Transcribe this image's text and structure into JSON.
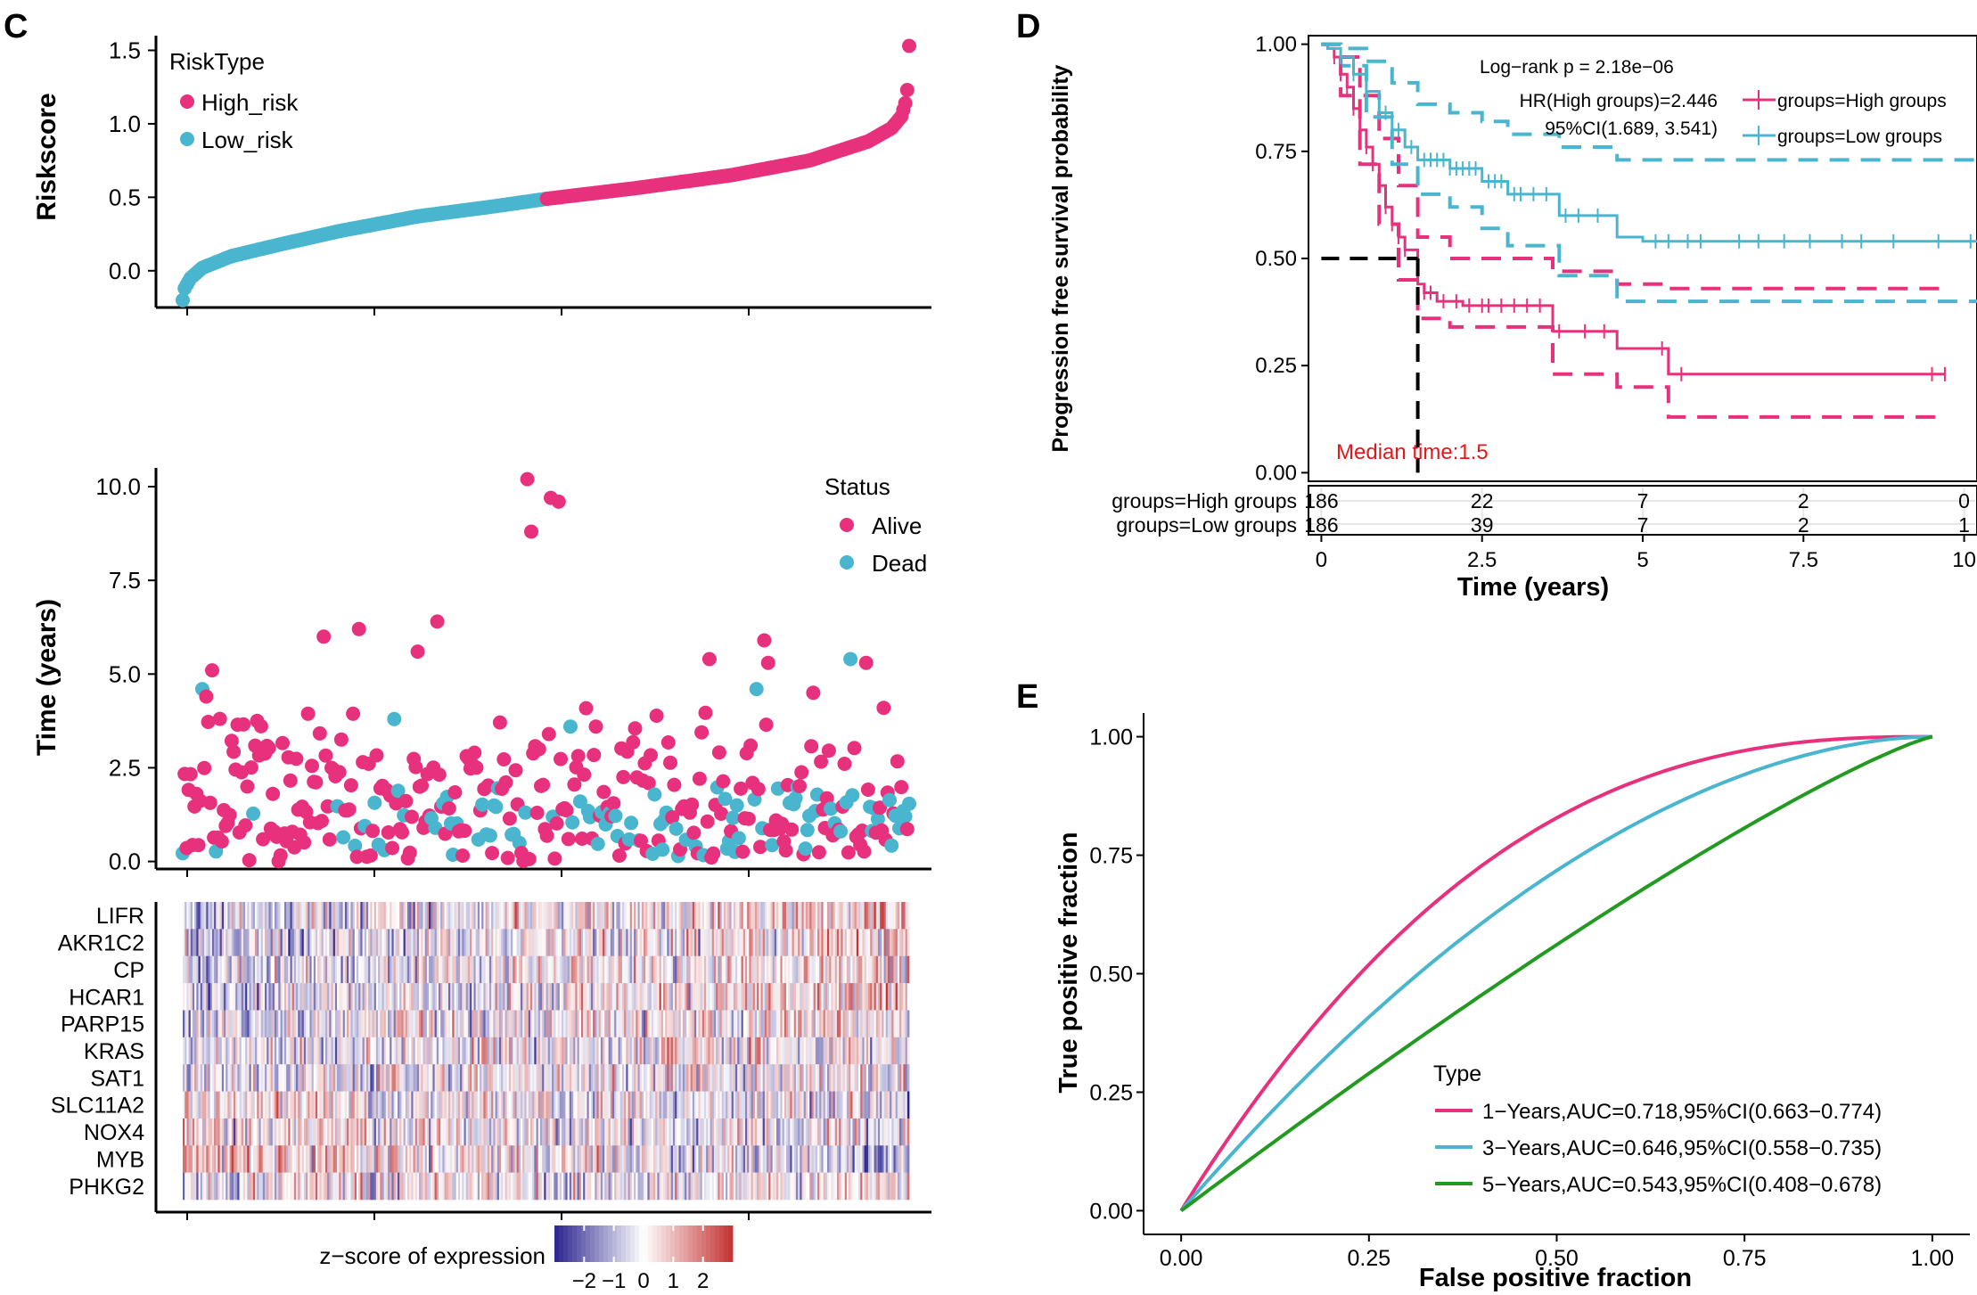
{
  "colors": {
    "high": "#E8317D",
    "low": "#4AB5CE",
    "green": "#229A22",
    "median_text": "#E0181B",
    "heat_low": "#2A238E",
    "heat_mid": "#FFFFFF",
    "heat_high": "#C43232"
  },
  "panels": {
    "c": "C",
    "d": "D",
    "e": "E"
  },
  "chart_data": [
    {
      "id": "C-riskscore",
      "type": "scatter",
      "ylabel": "Riskscore",
      "ylim": [
        -0.25,
        1.6
      ],
      "yticks": [
        0.0,
        0.5,
        1.0,
        1.5
      ],
      "ytick_labels": [
        "0.0",
        "0.5",
        "1.0",
        "1.5"
      ],
      "n_samples": 372,
      "n_low": 186,
      "legend": {
        "title": "RiskType",
        "entries": [
          "High_risk",
          "Low_risk"
        ],
        "position": "top-left"
      },
      "curve_control_points": [
        [
          0,
          -0.2
        ],
        [
          1,
          -0.12
        ],
        [
          4,
          -0.05
        ],
        [
          10,
          0.02
        ],
        [
          25,
          0.1
        ],
        [
          50,
          0.18
        ],
        [
          80,
          0.27
        ],
        [
          120,
          0.37
        ],
        [
          160,
          0.44
        ],
        [
          186,
          0.49
        ],
        [
          230,
          0.56
        ],
        [
          280,
          0.65
        ],
        [
          320,
          0.75
        ],
        [
          350,
          0.88
        ],
        [
          362,
          0.97
        ],
        [
          367,
          1.05
        ],
        [
          369,
          1.14
        ],
        [
          370,
          1.23
        ],
        [
          371,
          1.53
        ]
      ]
    },
    {
      "id": "C-status",
      "type": "scatter",
      "ylabel": "Time (years)",
      "ylim": [
        -0.2,
        10.5
      ],
      "yticks": [
        0.0,
        2.5,
        5.0,
        7.5,
        10.0
      ],
      "ytick_labels": [
        "0.0",
        "2.5",
        "5.0",
        "7.5",
        "10.0"
      ],
      "legend": {
        "title": "Status",
        "entries": [
          "Alive",
          "Dead"
        ],
        "position": "top-right"
      },
      "highlighted_points": [
        {
          "x": 10,
          "y": 4.6,
          "status": "Dead"
        },
        {
          "x": 12,
          "y": 4.4,
          "status": "Alive"
        },
        {
          "x": 15,
          "y": 5.1,
          "status": "Alive"
        },
        {
          "x": 72,
          "y": 6.0,
          "status": "Alive"
        },
        {
          "x": 90,
          "y": 6.2,
          "status": "Alive"
        },
        {
          "x": 108,
          "y": 3.8,
          "status": "Dead"
        },
        {
          "x": 120,
          "y": 5.6,
          "status": "Alive"
        },
        {
          "x": 130,
          "y": 6.4,
          "status": "Alive"
        },
        {
          "x": 176,
          "y": 10.2,
          "status": "Alive"
        },
        {
          "x": 178,
          "y": 8.8,
          "status": "Alive"
        },
        {
          "x": 188,
          "y": 9.7,
          "status": "Alive"
        },
        {
          "x": 192,
          "y": 9.6,
          "status": "Alive"
        },
        {
          "x": 198,
          "y": 3.6,
          "status": "Dead"
        },
        {
          "x": 211,
          "y": 3.6,
          "status": "Alive"
        },
        {
          "x": 269,
          "y": 5.4,
          "status": "Alive"
        },
        {
          "x": 293,
          "y": 4.6,
          "status": "Dead"
        },
        {
          "x": 297,
          "y": 5.9,
          "status": "Alive"
        },
        {
          "x": 299,
          "y": 5.3,
          "status": "Alive"
        },
        {
          "x": 322,
          "y": 4.5,
          "status": "Alive"
        },
        {
          "x": 341,
          "y": 5.4,
          "status": "Dead"
        },
        {
          "x": 349,
          "y": 5.3,
          "status": "Alive"
        }
      ]
    },
    {
      "id": "C-heatmap",
      "type": "heatmap",
      "genes": [
        "LIFR",
        "AKR1C2",
        "CP",
        "HCAR1",
        "PARP15",
        "KRAS",
        "SAT1",
        "SLC11A2",
        "NOX4",
        "MYB",
        "PHKG2"
      ],
      "n_columns": 372,
      "color_scale": {
        "title": "z−score of expression",
        "ticks": [
          -2,
          -1,
          0,
          1,
          2
        ],
        "tick_labels": [
          "−2",
          "−1",
          "0",
          "1",
          "2"
        ],
        "range": [
          -3,
          3
        ]
      }
    },
    {
      "id": "D-km",
      "type": "line",
      "xlabel": "Time (years)",
      "ylabel": "Progression free survival probability",
      "xlim": [
        -0.2,
        10.2
      ],
      "ylim": [
        -0.02,
        1.02
      ],
      "xticks": [
        0,
        2.5,
        5,
        7.5,
        10
      ],
      "xtick_labels": [
        "0",
        "2.5",
        "5",
        "7.5",
        "10"
      ],
      "yticks": [
        0,
        0.25,
        0.5,
        0.75,
        1.0
      ],
      "ytick_labels": [
        "0.00",
        "0.25",
        "0.50",
        "0.75",
        "1.00"
      ],
      "annotations": {
        "logrank": "Log−rank p = 2.18e−06",
        "hr": "HR(High groups)=2.446",
        "ci": "95%CI(1.689, 3.541)",
        "median": "Median time:1.5"
      },
      "median_time": 1.5,
      "series": [
        {
          "name": "groups=High groups",
          "steps": [
            [
              0,
              1.0
            ],
            [
              0.1,
              0.99
            ],
            [
              0.2,
              0.97
            ],
            [
              0.3,
              0.93
            ],
            [
              0.4,
              0.9
            ],
            [
              0.5,
              0.85
            ],
            [
              0.6,
              0.8
            ],
            [
              0.7,
              0.76
            ],
            [
              0.8,
              0.72
            ],
            [
              0.9,
              0.67
            ],
            [
              1.0,
              0.62
            ],
            [
              1.1,
              0.58
            ],
            [
              1.2,
              0.55
            ],
            [
              1.3,
              0.52
            ],
            [
              1.5,
              0.44
            ],
            [
              1.6,
              0.42
            ],
            [
              1.8,
              0.4
            ],
            [
              2.2,
              0.39
            ],
            [
              3.6,
              0.33
            ],
            [
              4.6,
              0.29
            ],
            [
              5.4,
              0.23
            ],
            [
              9.7,
              0.23
            ]
          ],
          "ci_upper": [
            [
              0,
              1.0
            ],
            [
              0.3,
              0.97
            ],
            [
              0.6,
              0.88
            ],
            [
              0.9,
              0.78
            ],
            [
              1.2,
              0.67
            ],
            [
              1.5,
              0.55
            ],
            [
              2.0,
              0.5
            ],
            [
              3.6,
              0.47
            ],
            [
              4.6,
              0.44
            ],
            [
              5.4,
              0.43
            ],
            [
              9.7,
              0.43
            ]
          ],
          "ci_lower": [
            [
              0,
              1.0
            ],
            [
              0.3,
              0.88
            ],
            [
              0.6,
              0.72
            ],
            [
              0.9,
              0.58
            ],
            [
              1.2,
              0.45
            ],
            [
              1.5,
              0.36
            ],
            [
              2.0,
              0.34
            ],
            [
              3.6,
              0.23
            ],
            [
              4.6,
              0.2
            ],
            [
              5.4,
              0.13
            ],
            [
              9.7,
              0.13
            ]
          ],
          "censor_times": [
            0.2,
            0.3,
            0.4,
            0.5,
            0.6,
            0.7,
            0.8,
            0.9,
            1.0,
            1.1,
            1.2,
            1.3,
            1.6,
            1.7,
            1.9,
            2.1,
            2.3,
            2.5,
            2.6,
            2.8,
            3.0,
            3.2,
            3.4,
            3.7,
            4.1,
            4.4,
            5.3,
            5.6,
            9.5,
            9.7
          ]
        },
        {
          "name": "groups=Low groups",
          "steps": [
            [
              0,
              1.0
            ],
            [
              0.1,
              0.99
            ],
            [
              0.3,
              0.97
            ],
            [
              0.5,
              0.93
            ],
            [
              0.7,
              0.89
            ],
            [
              0.9,
              0.84
            ],
            [
              1.1,
              0.8
            ],
            [
              1.3,
              0.76
            ],
            [
              1.5,
              0.73
            ],
            [
              2.0,
              0.71
            ],
            [
              2.5,
              0.68
            ],
            [
              2.9,
              0.65
            ],
            [
              3.7,
              0.6
            ],
            [
              4.6,
              0.55
            ],
            [
              5.0,
              0.54
            ],
            [
              10.2,
              0.54
            ]
          ],
          "ci_upper": [
            [
              0,
              1.0
            ],
            [
              0.3,
              0.99
            ],
            [
              0.7,
              0.96
            ],
            [
              1.1,
              0.91
            ],
            [
              1.5,
              0.86
            ],
            [
              2.0,
              0.84
            ],
            [
              2.5,
              0.82
            ],
            [
              2.9,
              0.79
            ],
            [
              3.7,
              0.76
            ],
            [
              4.6,
              0.73
            ],
            [
              10.2,
              0.73
            ]
          ],
          "ci_lower": [
            [
              0,
              1.0
            ],
            [
              0.3,
              0.95
            ],
            [
              0.7,
              0.83
            ],
            [
              1.1,
              0.72
            ],
            [
              1.5,
              0.65
            ],
            [
              2.0,
              0.62
            ],
            [
              2.5,
              0.57
            ],
            [
              2.9,
              0.53
            ],
            [
              3.7,
              0.46
            ],
            [
              4.6,
              0.4
            ],
            [
              10.2,
              0.4
            ]
          ],
          "censor_times": [
            0.3,
            0.5,
            0.7,
            0.9,
            1.0,
            1.2,
            1.4,
            1.6,
            1.7,
            1.8,
            1.9,
            2.0,
            2.1,
            2.2,
            2.3,
            2.4,
            2.6,
            2.7,
            2.8,
            3.0,
            3.1,
            3.3,
            3.5,
            3.8,
            4.0,
            4.3,
            5.2,
            5.4,
            5.7,
            5.9,
            6.5,
            6.8,
            7.2,
            7.6,
            8.1,
            8.4,
            8.9,
            9.6,
            10.1
          ]
        }
      ],
      "risk_table": {
        "rows": [
          "groups=High groups",
          "groups=Low groups"
        ],
        "times": [
          0,
          2.5,
          5,
          7.5,
          10
        ],
        "counts": [
          [
            "186",
            "22",
            "7",
            "2",
            "0"
          ],
          [
            "186",
            "39",
            "7",
            "2",
            "1"
          ]
        ]
      }
    },
    {
      "id": "E-roc",
      "type": "line",
      "xlabel": "False positive fraction",
      "ylabel": "True positive fraction",
      "xlim": [
        -0.05,
        1.05
      ],
      "ylim": [
        -0.05,
        1.05
      ],
      "xticks": [
        0,
        0.25,
        0.5,
        0.75,
        1.0
      ],
      "xtick_labels": [
        "0.00",
        "0.25",
        "0.50",
        "0.75",
        "1.00"
      ],
      "yticks": [
        0,
        0.25,
        0.5,
        0.75,
        1.0
      ],
      "ytick_labels": [
        "0.00",
        "0.25",
        "0.50",
        "0.75",
        "1.00"
      ],
      "legend": {
        "title": "Type",
        "position": "bottom-right"
      },
      "series": [
        {
          "name": "1−Years,AUC=0.718,95%CI(0.663−0.774)",
          "auc": 0.718
        },
        {
          "name": "3−Years,AUC=0.646,95%CI(0.558−0.735)",
          "auc": 0.646
        },
        {
          "name": "5−Years,AUC=0.543,95%CI(0.408−0.678)",
          "auc": 0.543
        }
      ]
    }
  ]
}
